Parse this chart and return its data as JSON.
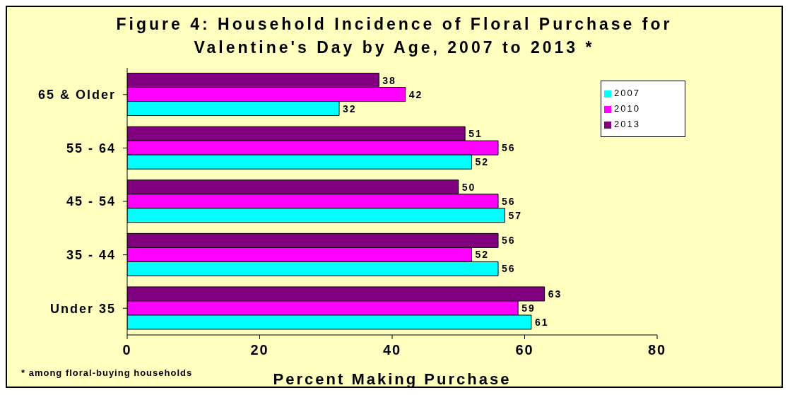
{
  "chart_data": {
    "type": "bar",
    "orientation": "horizontal",
    "title": "Figure 4: Household Incidence of Floral Purchase for Valentine's Day by Age, 2007 to 2013 *",
    "xlabel": "Percent Making Purchase",
    "categories": [
      "65 & Older",
      "55 - 64",
      "45 - 54",
      "35 - 44",
      "Under 35"
    ],
    "series": [
      {
        "name": "2013",
        "color": "#800080",
        "values": [
          38,
          51,
          50,
          56,
          63
        ]
      },
      {
        "name": "2010",
        "color": "#ff00ff",
        "values": [
          42,
          56,
          56,
          52,
          59
        ]
      },
      {
        "name": "2007",
        "color": "#00ffff",
        "values": [
          32,
          52,
          57,
          56,
          61
        ]
      }
    ],
    "xlim": [
      0,
      80
    ],
    "xticks": [
      0,
      20,
      40,
      60,
      80
    ],
    "grid": false,
    "legend": "top right",
    "data_labels": true,
    "annotations": [
      "* among floral-buying households"
    ]
  }
}
